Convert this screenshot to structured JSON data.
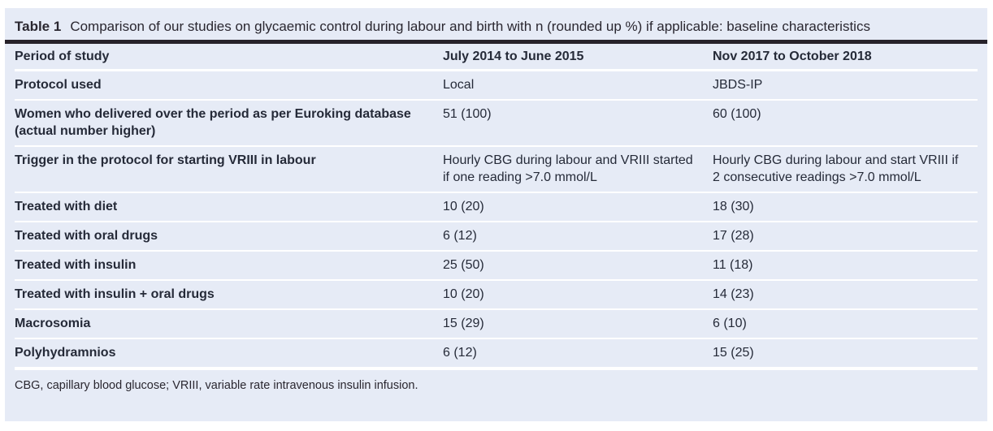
{
  "caption": {
    "label": "Table 1",
    "text": "Comparison of our studies on glycaemic control during labour and birth with n (rounded up %) if applicable: baseline characteristics"
  },
  "table": {
    "columns": [
      "Period of study",
      "July 2014 to June 2015",
      "Nov 2017 to October 2018"
    ],
    "rows": [
      {
        "label": "Protocol used",
        "c1": "Local",
        "c2": "JBDS-IP"
      },
      {
        "label": "Women who delivered over the period as per Euroking database (actual number higher)",
        "c1": "51 (100)",
        "c2": "60 (100)"
      },
      {
        "label": "Trigger in the protocol for starting VRIII in labour",
        "c1": "Hourly CBG during labour and VRIII started if one reading >7.0 mmol/L",
        "c2": "Hourly CBG during labour and start VRIII if 2 consecutive readings >7.0 mmol/L"
      },
      {
        "label": "Treated with diet",
        "c1": "10 (20)",
        "c2": "18 (30)"
      },
      {
        "label": "Treated with oral drugs",
        "c1": "6 (12)",
        "c2": "17 (28)"
      },
      {
        "label": "Treated with insulin",
        "c1": "25 (50)",
        "c2": "11 (18)"
      },
      {
        "label": "Treated with insulin + oral drugs",
        "c1": "10 (20)",
        "c2": "14 (23)"
      },
      {
        "label": "Macrosomia",
        "c1": "15 (29)",
        "c2": "6 (10)"
      },
      {
        "label": "Polyhydramnios",
        "c1": "6 (12)",
        "c2": "15 (25)"
      }
    ]
  },
  "footnote": "CBG, capillary blood glucose; VRIII, variable rate intravenous insulin infusion.",
  "colors": {
    "panel_bg": "#e6ebf6",
    "rule_dark": "#27222a",
    "separator": "#ffffff",
    "text": "#252a38"
  },
  "chart_data": {
    "type": "table",
    "title": "Table 1 Comparison of our studies on glycaemic control during labour and birth with n (rounded up %) if applicable: baseline characteristics",
    "columns": [
      "Period of study",
      "July 2014 to June 2015",
      "Nov 2017 to October 2018"
    ],
    "rows": [
      [
        "Protocol used",
        "Local",
        "JBDS-IP"
      ],
      [
        "Women who delivered over the period as per Euroking database (actual number higher)",
        "51 (100)",
        "60 (100)"
      ],
      [
        "Trigger in the protocol for starting VRIII in labour",
        "Hourly CBG during labour and VRIII started if one reading >7.0 mmol/L",
        "Hourly CBG during labour and start VRIII if 2 consecutive readings >7.0 mmol/L"
      ],
      [
        "Treated with diet",
        "10 (20)",
        "18 (30)"
      ],
      [
        "Treated with oral drugs",
        "6 (12)",
        "17 (28)"
      ],
      [
        "Treated with insulin",
        "25 (50)",
        "11 (18)"
      ],
      [
        "Treated with insulin + oral drugs",
        "10 (20)",
        "14 (23)"
      ],
      [
        "Macrosomia",
        "15 (29)",
        "6 (10)"
      ],
      [
        "Polyhydramnios",
        "6 (12)",
        "15 (25)"
      ]
    ],
    "footnote": "CBG, capillary blood glucose; VRIII, variable rate intravenous insulin infusion."
  }
}
